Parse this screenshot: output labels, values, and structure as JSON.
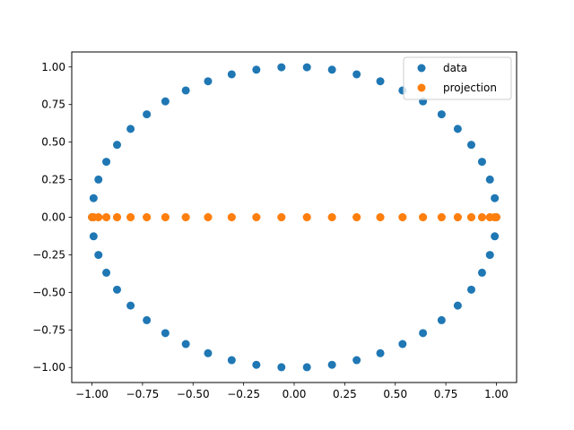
{
  "chart_data": {
    "type": "scatter",
    "xlim": [
      -1.1,
      1.1
    ],
    "ylim": [
      -1.1,
      1.1
    ],
    "x_ticks": [
      -1.0,
      -0.75,
      -0.5,
      -0.25,
      0.0,
      0.25,
      0.5,
      0.75,
      1.0
    ],
    "x_tick_labels": [
      "−1.00",
      "−0.75",
      "−0.50",
      "−0.25",
      "0.00",
      "0.25",
      "0.50",
      "0.75",
      "1.00"
    ],
    "y_ticks": [
      1.0,
      0.75,
      0.5,
      0.25,
      0.0,
      -0.25,
      -0.5,
      -0.75,
      -1.0
    ],
    "y_tick_labels": [
      "1.00",
      "0.75",
      "0.50",
      "0.25",
      "0.00",
      "−0.25",
      "−0.50",
      "−0.75",
      "−1.00"
    ],
    "grid": false,
    "legend_position": "upper right",
    "series": [
      {
        "name": "data",
        "color": "#1f77b4",
        "points": [
          [
            1.0,
            0.0
          ],
          [
            0.992,
            0.127
          ],
          [
            0.968,
            0.251
          ],
          [
            0.929,
            0.369
          ],
          [
            0.876,
            0.482
          ],
          [
            0.809,
            0.588
          ],
          [
            0.729,
            0.685
          ],
          [
            0.637,
            0.771
          ],
          [
            0.536,
            0.844
          ],
          [
            0.426,
            0.905
          ],
          [
            0.309,
            0.951
          ],
          [
            0.187,
            0.982
          ],
          [
            0.063,
            0.998
          ],
          [
            -0.063,
            0.998
          ],
          [
            -0.187,
            0.982
          ],
          [
            -0.309,
            0.951
          ],
          [
            -0.426,
            0.905
          ],
          [
            -0.536,
            0.844
          ],
          [
            -0.637,
            0.771
          ],
          [
            -0.729,
            0.685
          ],
          [
            -0.809,
            0.588
          ],
          [
            -0.876,
            0.482
          ],
          [
            -0.929,
            0.369
          ],
          [
            -0.968,
            0.251
          ],
          [
            -0.992,
            0.127
          ],
          [
            -1.0,
            0.0
          ],
          [
            -0.992,
            -0.127
          ],
          [
            -0.968,
            -0.251
          ],
          [
            -0.929,
            -0.369
          ],
          [
            -0.876,
            -0.482
          ],
          [
            -0.809,
            -0.588
          ],
          [
            -0.729,
            -0.685
          ],
          [
            -0.637,
            -0.771
          ],
          [
            -0.536,
            -0.844
          ],
          [
            -0.426,
            -0.905
          ],
          [
            -0.309,
            -0.951
          ],
          [
            -0.187,
            -0.982
          ],
          [
            -0.063,
            -0.998
          ],
          [
            0.063,
            -0.998
          ],
          [
            0.187,
            -0.982
          ],
          [
            0.309,
            -0.951
          ],
          [
            0.426,
            -0.905
          ],
          [
            0.536,
            -0.844
          ],
          [
            0.637,
            -0.771
          ],
          [
            0.729,
            -0.685
          ],
          [
            0.809,
            -0.588
          ],
          [
            0.876,
            -0.482
          ],
          [
            0.929,
            -0.369
          ],
          [
            0.968,
            -0.251
          ],
          [
            0.992,
            -0.127
          ]
        ]
      },
      {
        "name": "projection",
        "color": "#ff7f0e",
        "points": [
          [
            1.0,
            0.0
          ],
          [
            0.992,
            0.0
          ],
          [
            0.968,
            0.0
          ],
          [
            0.929,
            0.0
          ],
          [
            0.876,
            0.0
          ],
          [
            0.809,
            0.0
          ],
          [
            0.729,
            0.0
          ],
          [
            0.637,
            0.0
          ],
          [
            0.536,
            0.0
          ],
          [
            0.426,
            0.0
          ],
          [
            0.309,
            0.0
          ],
          [
            0.187,
            0.0
          ],
          [
            0.063,
            0.0
          ],
          [
            -0.063,
            0.0
          ],
          [
            -0.187,
            0.0
          ],
          [
            -0.309,
            0.0
          ],
          [
            -0.426,
            0.0
          ],
          [
            -0.536,
            0.0
          ],
          [
            -0.637,
            0.0
          ],
          [
            -0.729,
            0.0
          ],
          [
            -0.809,
            0.0
          ],
          [
            -0.876,
            0.0
          ],
          [
            -0.929,
            0.0
          ],
          [
            -0.968,
            0.0
          ],
          [
            -0.992,
            0.0
          ],
          [
            -1.0,
            0.0
          ],
          [
            -0.992,
            0.0
          ],
          [
            -0.968,
            0.0
          ],
          [
            -0.929,
            0.0
          ],
          [
            -0.876,
            0.0
          ],
          [
            -0.809,
            0.0
          ],
          [
            -0.729,
            0.0
          ],
          [
            -0.637,
            0.0
          ],
          [
            -0.536,
            0.0
          ],
          [
            -0.426,
            0.0
          ],
          [
            -0.309,
            0.0
          ],
          [
            -0.187,
            0.0
          ],
          [
            -0.063,
            0.0
          ],
          [
            0.063,
            0.0
          ],
          [
            0.187,
            0.0
          ],
          [
            0.309,
            0.0
          ],
          [
            0.426,
            0.0
          ],
          [
            0.536,
            0.0
          ],
          [
            0.637,
            0.0
          ],
          [
            0.729,
            0.0
          ],
          [
            0.809,
            0.0
          ],
          [
            0.876,
            0.0
          ],
          [
            0.929,
            0.0
          ],
          [
            0.968,
            0.0
          ],
          [
            0.992,
            0.0
          ]
        ]
      }
    ]
  }
}
